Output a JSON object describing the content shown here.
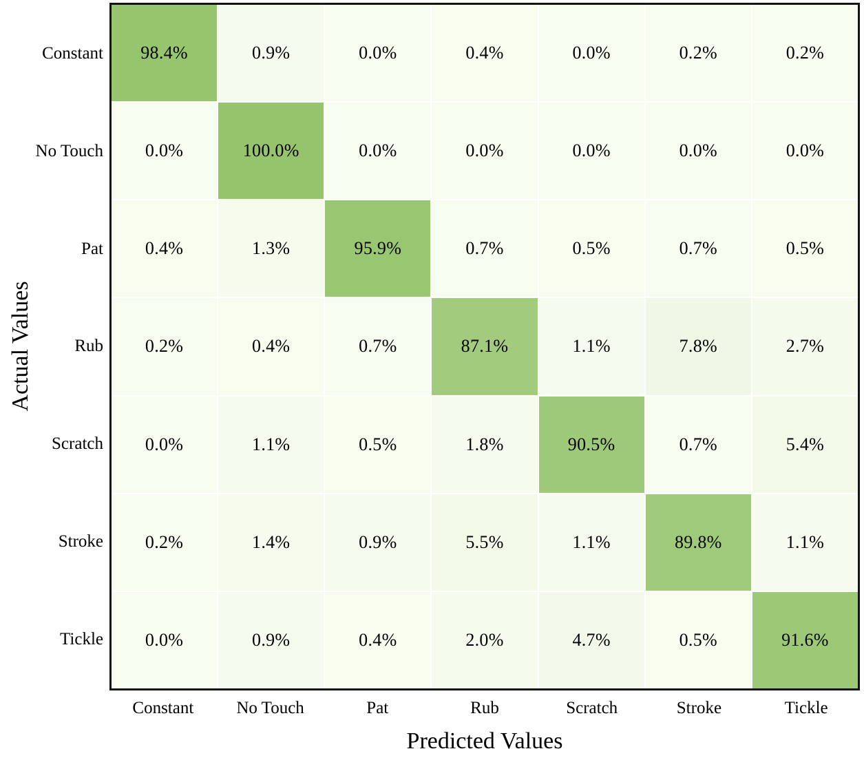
{
  "chart_data": {
    "type": "heatmap",
    "title": "",
    "xlabel": "Predicted Values",
    "ylabel": "Actual Values",
    "categories": [
      "Constant",
      "No Touch",
      "Pat",
      "Rub",
      "Scratch",
      "Stroke",
      "Tickle"
    ],
    "row_labels": [
      "Constant",
      "No Touch",
      "Pat",
      "Rub",
      "Scratch",
      "Stroke",
      "Tickle"
    ],
    "values": [
      [
        98.4,
        0.9,
        0.0,
        0.4,
        0.0,
        0.2,
        0.2
      ],
      [
        0.0,
        100.0,
        0.0,
        0.0,
        0.0,
        0.0,
        0.0
      ],
      [
        0.4,
        1.3,
        95.9,
        0.7,
        0.5,
        0.7,
        0.5
      ],
      [
        0.2,
        0.4,
        0.7,
        87.1,
        1.1,
        7.8,
        2.7
      ],
      [
        0.0,
        1.1,
        0.5,
        1.8,
        90.5,
        0.7,
        5.4
      ],
      [
        0.2,
        1.4,
        0.9,
        5.5,
        1.1,
        89.8,
        1.1
      ],
      [
        0.0,
        0.9,
        0.4,
        2.0,
        4.7,
        0.5,
        91.6
      ]
    ],
    "value_suffix": "%",
    "value_decimals": 1,
    "value_range": [
      0,
      100
    ],
    "colormap": {
      "low": "#f7fcf0",
      "high": "#95c46c"
    },
    "cell_text_color": "#000000",
    "frame_color": "#141414",
    "grid_gap_color": "#ffffff",
    "legend": "none"
  }
}
